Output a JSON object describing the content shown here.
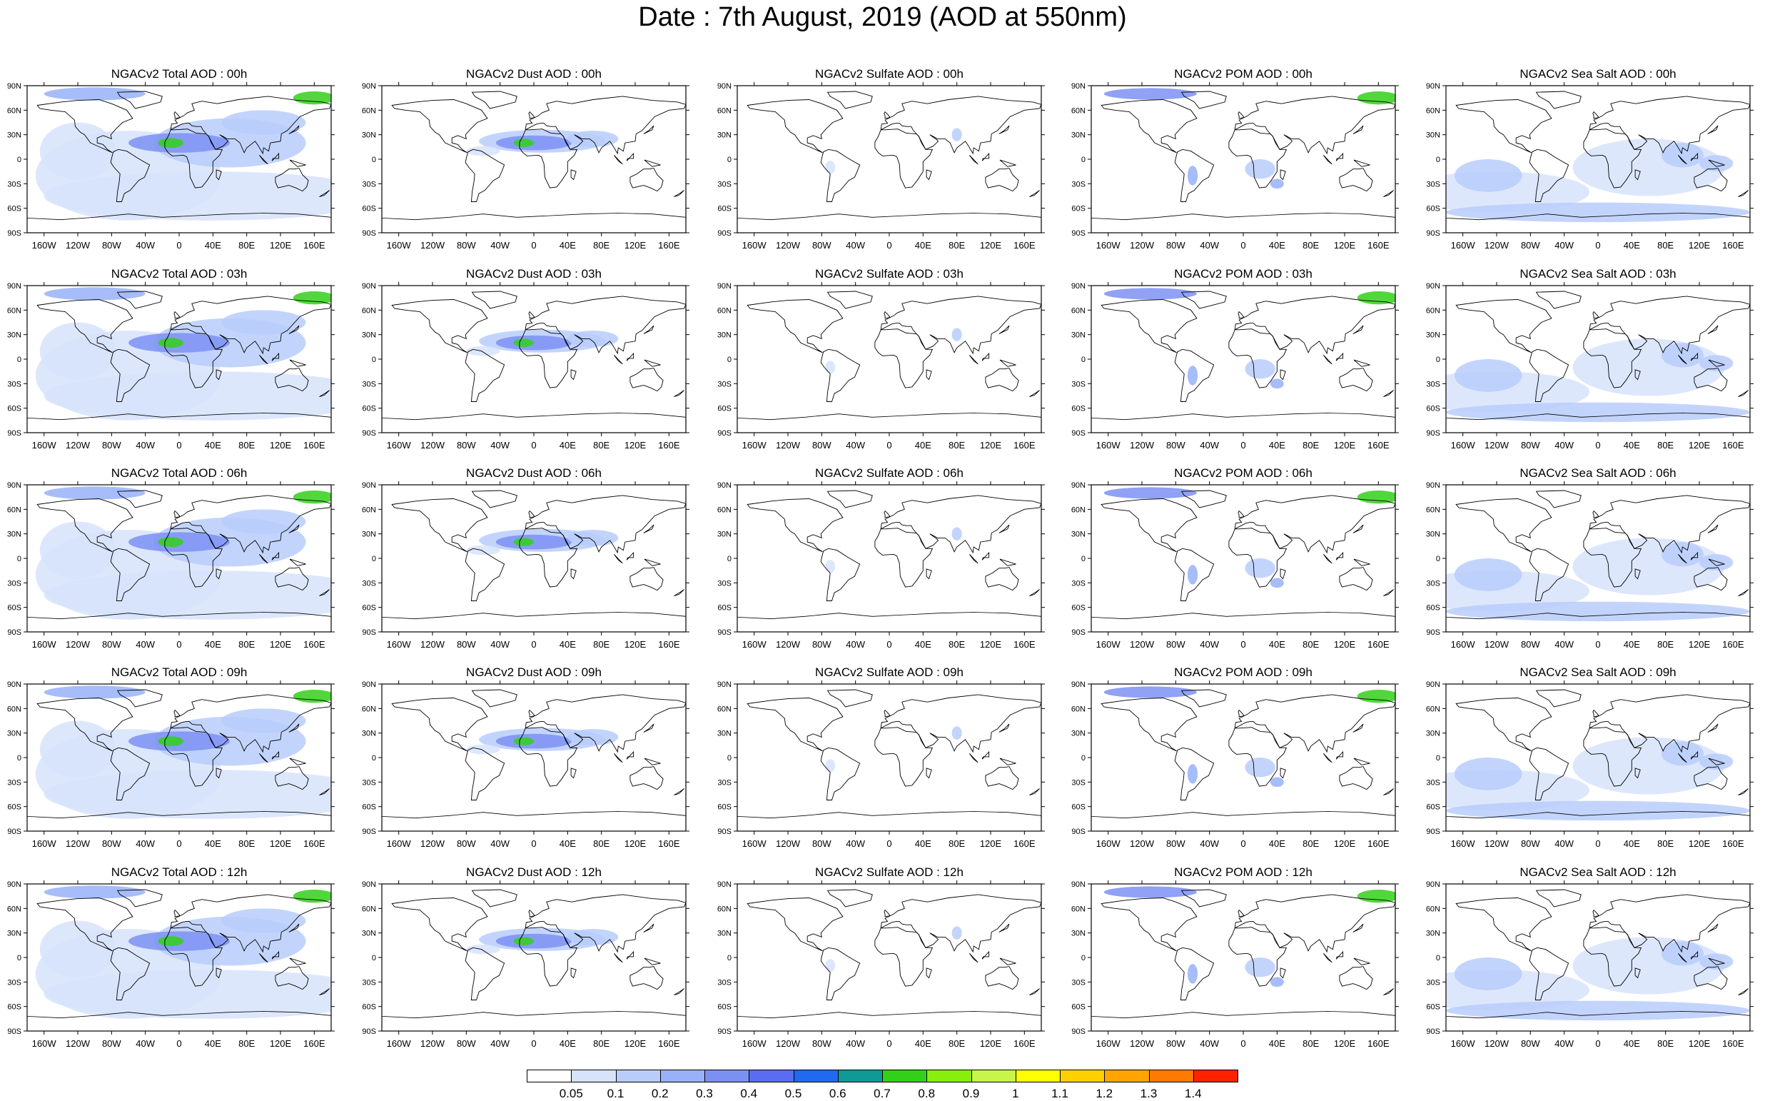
{
  "title": "Date : 7th August, 2019 (AOD at 550nm)",
  "lat_ticks": [
    "90N",
    "60N",
    "30N",
    "0",
    "30S",
    "60S",
    "90S"
  ],
  "lon_ticks": [
    "160W",
    "120W",
    "80W",
    "40W",
    "0",
    "40E",
    "80E",
    "120E",
    "160E"
  ],
  "panels": [
    [
      "NGACv2 Total AOD : 00h",
      "NGACv2 Dust AOD : 00h",
      "NGACv2 Sulfate AOD : 00h",
      "NGACv2 POM AOD : 00h",
      "NGACv2 Sea Salt AOD : 00h"
    ],
    [
      "NGACv2 Total AOD : 03h",
      "NGACv2 Dust AOD : 03h",
      "NGACv2 Sulfate AOD : 03h",
      "NGACv2 POM AOD : 03h",
      "NGACv2 Sea Salt AOD : 03h"
    ],
    [
      "NGACv2 Total AOD : 06h",
      "NGACv2 Dust AOD : 06h",
      "NGACv2 Sulfate AOD : 06h",
      "NGACv2 POM AOD : 06h",
      "NGACv2 Sea Salt AOD : 06h"
    ],
    [
      "NGACv2 Total AOD : 09h",
      "NGACv2 Dust AOD : 09h",
      "NGACv2 Sulfate AOD : 09h",
      "NGACv2 POM AOD : 09h",
      "NGACv2 Sea Salt  AOD : 09h"
    ],
    [
      "NGACv2 Total AOD  : 12h",
      "NGACv2 Dust AOD : 12h",
      "NGACv2 Sulfate AOD : 12h",
      "NGACv2 POM  AOD : 12h",
      "NGACv2 Sea Salt  AOD : 12h"
    ]
  ],
  "colorbar": {
    "labels": [
      "0.05",
      "0.1",
      "0.2",
      "0.3",
      "0.4",
      "0.5",
      "0.6",
      "0.7",
      "0.8",
      "0.9",
      "1",
      "1.1",
      "1.2",
      "1.3",
      "1.4"
    ],
    "colors": [
      "#ffffff",
      "#d7e3fb",
      "#b9cdfb",
      "#98b1f8",
      "#7c90f4",
      "#5a6df0",
      "#1f6af0",
      "#0f9a96",
      "#33d019",
      "#88ee0c",
      "#c8f54a",
      "#ffff00",
      "#ffd000",
      "#ffa400",
      "#ff7a00",
      "#ff2200"
    ]
  }
}
